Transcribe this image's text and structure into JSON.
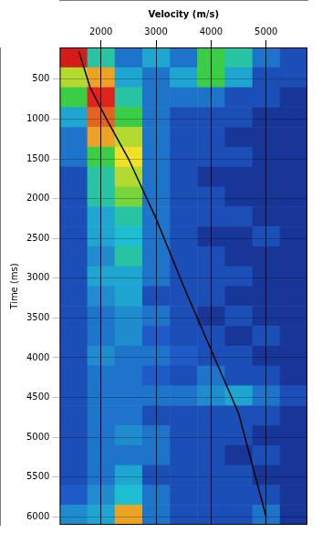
{
  "chart_data": {
    "type": "heatmap",
    "x_label": "Velocity (m/s)",
    "y_label": "Time (ms)",
    "xlim": [
      1250,
      5750
    ],
    "ylim": [
      6100,
      100
    ],
    "xticks": [
      2000,
      3000,
      4000,
      5000
    ],
    "yticks": [
      500,
      1000,
      1500,
      2000,
      2500,
      3000,
      3500,
      4000,
      4500,
      5000,
      5500,
      6000
    ],
    "grid": true,
    "heatmap": {
      "x_edges": [
        1250,
        1750,
        2250,
        2750,
        3250,
        3750,
        4250,
        4750,
        5250,
        5750
      ],
      "y_edges": [
        100,
        350,
        600,
        850,
        1100,
        1350,
        1600,
        1850,
        2100,
        2350,
        2600,
        2850,
        3100,
        3350,
        3600,
        3850,
        4100,
        4350,
        4600,
        4850,
        5100,
        5350,
        5600,
        5850,
        6100
      ],
      "zlim": [
        0,
        1
      ],
      "values": [
        [
          0.95,
          0.5,
          0.3,
          0.4,
          0.3,
          0.6,
          0.5,
          0.3,
          0.2
        ],
        [
          0.7,
          0.8,
          0.4,
          0.3,
          0.4,
          0.6,
          0.4,
          0.2,
          0.2
        ],
        [
          0.6,
          0.9,
          0.5,
          0.3,
          0.3,
          0.3,
          0.2,
          0.2,
          0.1
        ],
        [
          0.4,
          0.85,
          0.6,
          0.3,
          0.2,
          0.2,
          0.2,
          0.1,
          0.1
        ],
        [
          0.3,
          0.8,
          0.7,
          0.3,
          0.2,
          0.2,
          0.1,
          0.1,
          0.1
        ],
        [
          0.3,
          0.6,
          0.75,
          0.3,
          0.2,
          0.2,
          0.2,
          0.1,
          0.1
        ],
        [
          0.2,
          0.5,
          0.7,
          0.3,
          0.2,
          0.1,
          0.1,
          0.1,
          0.1
        ],
        [
          0.2,
          0.5,
          0.65,
          0.3,
          0.2,
          0.2,
          0.1,
          0.1,
          0.1
        ],
        [
          0.2,
          0.4,
          0.5,
          0.3,
          0.2,
          0.2,
          0.2,
          0.1,
          0.1
        ],
        [
          0.2,
          0.4,
          0.45,
          0.3,
          0.2,
          0.1,
          0.1,
          0.2,
          0.1
        ],
        [
          0.2,
          0.35,
          0.5,
          0.3,
          0.2,
          0.2,
          0.1,
          0.1,
          0.1
        ],
        [
          0.2,
          0.4,
          0.4,
          0.3,
          0.2,
          0.2,
          0.2,
          0.1,
          0.1
        ],
        [
          0.2,
          0.35,
          0.4,
          0.2,
          0.2,
          0.2,
          0.1,
          0.1,
          0.1
        ],
        [
          0.2,
          0.3,
          0.35,
          0.3,
          0.2,
          0.1,
          0.2,
          0.1,
          0.1
        ],
        [
          0.2,
          0.3,
          0.35,
          0.25,
          0.2,
          0.2,
          0.1,
          0.2,
          0.1
        ],
        [
          0.2,
          0.35,
          0.3,
          0.3,
          0.25,
          0.2,
          0.2,
          0.1,
          0.1
        ],
        [
          0.2,
          0.3,
          0.3,
          0.25,
          0.2,
          0.3,
          0.2,
          0.2,
          0.1
        ],
        [
          0.2,
          0.3,
          0.3,
          0.3,
          0.3,
          0.35,
          0.4,
          0.3,
          0.2
        ],
        [
          0.2,
          0.3,
          0.3,
          0.2,
          0.2,
          0.2,
          0.2,
          0.2,
          0.1
        ],
        [
          0.2,
          0.3,
          0.35,
          0.3,
          0.2,
          0.2,
          0.2,
          0.1,
          0.1
        ],
        [
          0.2,
          0.3,
          0.3,
          0.3,
          0.2,
          0.2,
          0.1,
          0.2,
          0.1
        ],
        [
          0.2,
          0.3,
          0.4,
          0.2,
          0.2,
          0.2,
          0.2,
          0.1,
          0.1
        ],
        [
          0.25,
          0.35,
          0.45,
          0.3,
          0.2,
          0.2,
          0.2,
          0.2,
          0.1
        ],
        [
          0.35,
          0.4,
          0.8,
          0.3,
          0.2,
          0.2,
          0.2,
          0.3,
          0.1
        ]
      ]
    },
    "series": [
      {
        "type": "line",
        "color": "#000000",
        "x": [
          1600,
          1800,
          2100,
          2500,
          3000,
          3500,
          4000,
          4500,
          5000
        ],
        "y": [
          150,
          600,
          1000,
          1500,
          2250,
          3100,
          3900,
          4700,
          6000
        ]
      }
    ]
  }
}
